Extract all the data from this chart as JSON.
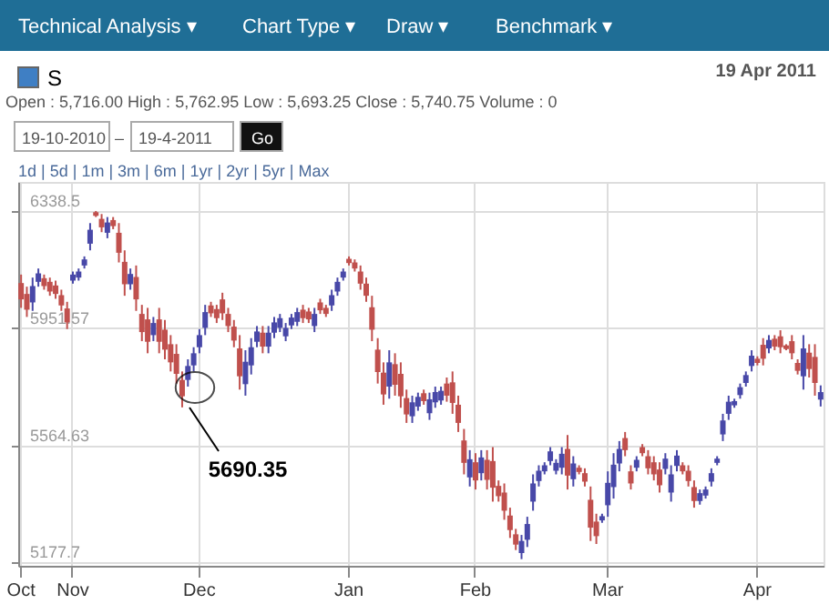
{
  "chart_data": {
    "type": "candlestick",
    "title": "S",
    "subtitle": "Open : 5,716.00  High : 5,762.95  Low : 5,693.25  Close : 5,740.75  Volume : 0",
    "annotations": [
      "Technical Analysis ▾",
      "Chart Type ▾",
      "Draw ▾",
      "Benchmark ▾",
      "19 Apr 2011",
      "19-10-2010",
      "–",
      "19-4-2011",
      "Go",
      "1d |  5d |  1m |  3m |  6m |  1yr |  2yr |  5yr |  Max",
      "5690.35"
    ],
    "categories": [
      "Oct",
      null,
      null,
      null,
      null,
      null,
      null,
      null,
      null,
      "Nov",
      null,
      null,
      null,
      null,
      null,
      null,
      null,
      null,
      null,
      null,
      null,
      null,
      null,
      null,
      null,
      null,
      null,
      null,
      null,
      null,
      null,
      "Dec",
      null,
      null,
      null,
      null,
      null,
      null,
      null,
      null,
      null,
      null,
      null,
      null,
      null,
      null,
      null,
      null,
      null,
      null,
      null,
      null,
      null,
      null,
      null,
      null,
      null,
      "Jan",
      null,
      null,
      null,
      null,
      null,
      null,
      null,
      null,
      null,
      null,
      null,
      null,
      null,
      null,
      null,
      null,
      null,
      null,
      null,
      null,
      null,
      "Feb",
      null,
      null,
      null,
      null,
      null,
      null,
      null,
      null,
      null,
      null,
      null,
      null,
      null,
      null,
      null,
      null,
      null,
      null,
      null,
      null,
      null,
      null,
      "Mar",
      null,
      null,
      null,
      null,
      null,
      null,
      null,
      null,
      null,
      null,
      null,
      null,
      null,
      null,
      null,
      null,
      null,
      null,
      null,
      null,
      null,
      null,
      null,
      null,
      null,
      "Apr",
      null,
      null,
      null,
      null,
      null,
      null,
      null,
      null,
      null,
      null,
      null
    ],
    "ohlc": [
      [
        6101,
        6129,
        6019,
        6047
      ],
      [
        6065,
        6089,
        5989,
        6013
      ],
      [
        6037,
        6119,
        6009,
        6091
      ],
      [
        6105,
        6149,
        6089,
        6133
      ],
      [
        6117,
        6129,
        6079,
        6091
      ],
      [
        6105,
        6119,
        6059,
        6073
      ],
      [
        6093,
        6109,
        6049,
        6065
      ],
      [
        6061,
        6079,
        6009,
        6027
      ],
      [
        6017,
        6039,
        5949,
        5971
      ],
      [
        6109,
        6139,
        6099,
        6129
      ],
      [
        6119,
        6149,
        6109,
        6139
      ],
      [
        6159,
        6189,
        6149,
        6179
      ],
      [
        6231,
        6299,
        6209,
        6277
      ],
      [
        6335,
        6339,
        6319,
        6323
      ],
      [
        6313,
        6329,
        6269,
        6285
      ],
      [
        6267,
        6319,
        6249,
        6301
      ],
      [
        6309,
        6319,
        6279,
        6289
      ],
      [
        6267,
        6299,
        6169,
        6201
      ],
      [
        6171,
        6209,
        6059,
        6097
      ],
      [
        6097,
        6149,
        6079,
        6131
      ],
      [
        6121,
        6159,
        6009,
        6047
      ],
      [
        5999,
        6029,
        5909,
        5939
      ],
      [
        5981,
        6019,
        5869,
        5907
      ],
      [
        5929,
        5989,
        5909,
        5969
      ],
      [
        5981,
        6019,
        5869,
        5907
      ],
      [
        5947,
        5979,
        5849,
        5881
      ],
      [
        5899,
        5929,
        5809,
        5839
      ],
      [
        5867,
        5899,
        5769,
        5801
      ],
      [
        5781,
        5809,
        5690.35,
        5727
      ],
      [
        5781,
        5849,
        5759,
        5827
      ],
      [
        5829,
        5889,
        5809,
        5869
      ],
      [
        5889,
        5949,
        5869,
        5929
      ],
      [
        5953,
        6029,
        5929,
        6005
      ],
      [
        6027,
        6039,
        5989,
        6001
      ],
      [
        6015,
        6029,
        5969,
        5985
      ],
      [
        6047,
        6069,
        5979,
        6001
      ],
      [
        5999,
        6019,
        5939,
        5959
      ],
      [
        5957,
        5979,
        5889,
        5911
      ],
      [
        5885,
        5929,
        5749,
        5793
      ],
      [
        5767,
        5879,
        5729,
        5841
      ],
      [
        5829,
        5919,
        5799,
        5889
      ],
      [
        5907,
        5959,
        5889,
        5941
      ],
      [
        5937,
        5959,
        5869,
        5891
      ],
      [
        5891,
        5959,
        5869,
        5937
      ],
      [
        5937,
        5989,
        5919,
        5971
      ],
      [
        5953,
        5999,
        5939,
        5985
      ],
      [
        5925,
        5969,
        5909,
        5953
      ],
      [
        5961,
        5999,
        5949,
        5987
      ],
      [
        5973,
        6019,
        5959,
        6005
      ],
      [
        6013,
        6029,
        5969,
        5985
      ],
      [
        6007,
        6019,
        5969,
        5981
      ],
      [
        5959,
        6019,
        5939,
        5999
      ],
      [
        6037,
        6049,
        5999,
        6011
      ],
      [
        6019,
        6029,
        5989,
        5999
      ],
      [
        6027,
        6079,
        6009,
        6061
      ],
      [
        6073,
        6119,
        6059,
        6105
      ],
      [
        6119,
        6149,
        6109,
        6139
      ],
      [
        6181,
        6189,
        6159,
        6167
      ],
      [
        6169,
        6179,
        6139,
        6149
      ],
      [
        6139,
        6159,
        6079,
        6099
      ],
      [
        6099,
        6119,
        6039,
        6059
      ],
      [
        6021,
        6059,
        5909,
        5947
      ],
      [
        5881,
        5919,
        5769,
        5807
      ],
      [
        5805,
        5839,
        5699,
        5733
      ],
      [
        5759,
        5879,
        5719,
        5839
      ],
      [
        5833,
        5869,
        5729,
        5765
      ],
      [
        5801,
        5839,
        5689,
        5727
      ],
      [
        5721,
        5749,
        5639,
        5667
      ],
      [
        5661,
        5729,
        5639,
        5707
      ],
      [
        5693,
        5739,
        5679,
        5725
      ],
      [
        5737,
        5749,
        5699,
        5711
      ],
      [
        5671,
        5739,
        5649,
        5717
      ],
      [
        5707,
        5759,
        5689,
        5741
      ],
      [
        5713,
        5759,
        5699,
        5745
      ],
      [
        5769,
        5789,
        5709,
        5729
      ],
      [
        5773,
        5809,
        5669,
        5705
      ],
      [
        5699,
        5729,
        5609,
        5639
      ],
      [
        5581,
        5619,
        5469,
        5507
      ],
      [
        5459,
        5549,
        5429,
        5519
      ],
      [
        5509,
        5539,
        5419,
        5449
      ],
      [
        5473,
        5549,
        5449,
        5525
      ],
      [
        5517,
        5549,
        5419,
        5451
      ],
      [
        5513,
        5559,
        5379,
        5425
      ],
      [
        5431,
        5449,
        5379,
        5397
      ],
      [
        5409,
        5439,
        5319,
        5349
      ],
      [
        5333,
        5359,
        5259,
        5285
      ],
      [
        5271,
        5289,
        5219,
        5237
      ],
      [
        5209,
        5269,
        5189,
        5249
      ],
      [
        5253,
        5329,
        5229,
        5305
      ],
      [
        5379,
        5469,
        5349,
        5439
      ],
      [
        5447,
        5499,
        5429,
        5481
      ],
      [
        5479,
        5509,
        5469,
        5499
      ],
      [
        5513,
        5559,
        5499,
        5545
      ],
      [
        5481,
        5519,
        5469,
        5507
      ],
      [
        5491,
        5559,
        5469,
        5537
      ],
      [
        5553,
        5599,
        5419,
        5465
      ],
      [
        5453,
        5529,
        5429,
        5505
      ],
      [
        5491,
        5499,
        5469,
        5477
      ],
      [
        5473,
        5489,
        5429,
        5445
      ],
      [
        5385,
        5429,
        5249,
        5293
      ],
      [
        5313,
        5339,
        5239,
        5265
      ],
      [
        5317,
        5339,
        5309,
        5331
      ],
      [
        5367,
        5479,
        5329,
        5441
      ],
      [
        5427,
        5539,
        5389,
        5501
      ],
      [
        5505,
        5579,
        5479,
        5553
      ],
      [
        5589,
        5609,
        5529,
        5549
      ],
      [
        5479,
        5499,
        5419,
        5439
      ],
      [
        5491,
        5529,
        5479,
        5517
      ],
      [
        5559,
        5569,
        5529,
        5539
      ],
      [
        5529,
        5549,
        5469,
        5489
      ],
      [
        5509,
        5529,
        5449,
        5469
      ],
      [
        5485,
        5509,
        5409,
        5433
      ],
      [
        5487,
        5539,
        5469,
        5521
      ],
      [
        5409,
        5499,
        5379,
        5469
      ],
      [
        5497,
        5549,
        5479,
        5531
      ],
      [
        5499,
        5509,
        5469,
        5479
      ],
      [
        5481,
        5499,
        5429,
        5447
      ],
      [
        5427,
        5449,
        5359,
        5381
      ],
      [
        5381,
        5419,
        5369,
        5407
      ],
      [
        5399,
        5429,
        5389,
        5419
      ],
      [
        5445,
        5489,
        5429,
        5473
      ],
      [
        5507,
        5529,
        5499,
        5521
      ],
      [
        5601,
        5669,
        5579,
        5647
      ],
      [
        5669,
        5729,
        5649,
        5709
      ],
      [
        5697,
        5719,
        5689,
        5711
      ],
      [
        5731,
        5769,
        5719,
        5757
      ],
      [
        5771,
        5809,
        5759,
        5797
      ],
      [
        5827,
        5879,
        5809,
        5861
      ],
      [
        5851,
        5859,
        5829,
        5837
      ],
      [
        5897,
        5919,
        5829,
        5851
      ],
      [
        5885,
        5929,
        5869,
        5913
      ],
      [
        5917,
        5929,
        5879,
        5891
      ],
      [
        5925,
        5945,
        5869,
        5889
      ],
      [
        5895,
        5899,
        5879,
        5883
      ],
      [
        5909,
        5929,
        5849,
        5869
      ],
      [
        5837,
        5849,
        5799,
        5811
      ],
      [
        5793,
        5929,
        5749,
        5885
      ],
      [
        5871,
        5899,
        5789,
        5817
      ],
      [
        5857,
        5899,
        5729,
        5771
      ],
      [
        5716,
        5762.95,
        5693.25,
        5740.75
      ]
    ],
    "colors": [
      "#c0504d",
      "#c0504d",
      "#4848a8",
      "#4848a8",
      "#c0504d",
      "#c0504d",
      "#c0504d",
      "#c0504d",
      "#c0504d",
      "#4848a8",
      "#4848a8",
      "#4848a8",
      "#4848a8",
      "#c0504d",
      "#c0504d",
      "#4848a8",
      "#c0504d",
      "#c0504d",
      "#c0504d",
      "#4848a8",
      "#c0504d",
      "#c0504d",
      "#c0504d",
      "#4848a8",
      "#c0504d",
      "#c0504d",
      "#c0504d",
      "#c0504d",
      "#c0504d",
      "#4848a8",
      "#4848a8",
      "#4848a8",
      "#4848a8",
      "#c0504d",
      "#c0504d",
      "#c0504d",
      "#c0504d",
      "#c0504d",
      "#c0504d",
      "#4848a8",
      "#4848a8",
      "#4848a8",
      "#c0504d",
      "#4848a8",
      "#4848a8",
      "#4848a8",
      "#4848a8",
      "#4848a8",
      "#4848a8",
      "#c0504d",
      "#c0504d",
      "#4848a8",
      "#c0504d",
      "#c0504d",
      "#4848a8",
      "#4848a8",
      "#4848a8",
      "#c0504d",
      "#c0504d",
      "#c0504d",
      "#c0504d",
      "#c0504d",
      "#c0504d",
      "#c0504d",
      "#4848a8",
      "#c0504d",
      "#c0504d",
      "#c0504d",
      "#4848a8",
      "#4848a8",
      "#c0504d",
      "#4848a8",
      "#4848a8",
      "#4848a8",
      "#c0504d",
      "#c0504d",
      "#c0504d",
      "#c0504d",
      "#4848a8",
      "#c0504d",
      "#4848a8",
      "#c0504d",
      "#c0504d",
      "#c0504d",
      "#c0504d",
      "#c0504d",
      "#c0504d",
      "#4848a8",
      "#4848a8",
      "#4848a8",
      "#4848a8",
      "#4848a8",
      "#4848a8",
      "#4848a8",
      "#4848a8",
      "#c0504d",
      "#4848a8",
      "#c0504d",
      "#c0504d",
      "#c0504d",
      "#c0504d",
      "#4848a8",
      "#4848a8",
      "#4848a8",
      "#4848a8",
      "#c0504d",
      "#c0504d",
      "#4848a8",
      "#c0504d",
      "#c0504d",
      "#c0504d",
      "#c0504d",
      "#4848a8",
      "#4848a8",
      "#4848a8",
      "#c0504d",
      "#c0504d",
      "#c0504d",
      "#4848a8",
      "#4848a8",
      "#4848a8",
      "#4848a8",
      "#4848a8",
      "#4848a8",
      "#4848a8",
      "#4848a8",
      "#4848a8",
      "#4848a8",
      "#c0504d",
      "#c0504d",
      "#4848a8",
      "#c0504d",
      "#c0504d",
      "#c0504d",
      "#c0504d",
      "#c0504d",
      "#4848a8",
      "#c0504d",
      "#c0504d",
      "#4848a8"
    ],
    "ylim": [
      5167,
      6435
    ],
    "yticks": [
      5177.7,
      5564.63,
      5951.57,
      6338.5
    ],
    "grid": true
  }
}
